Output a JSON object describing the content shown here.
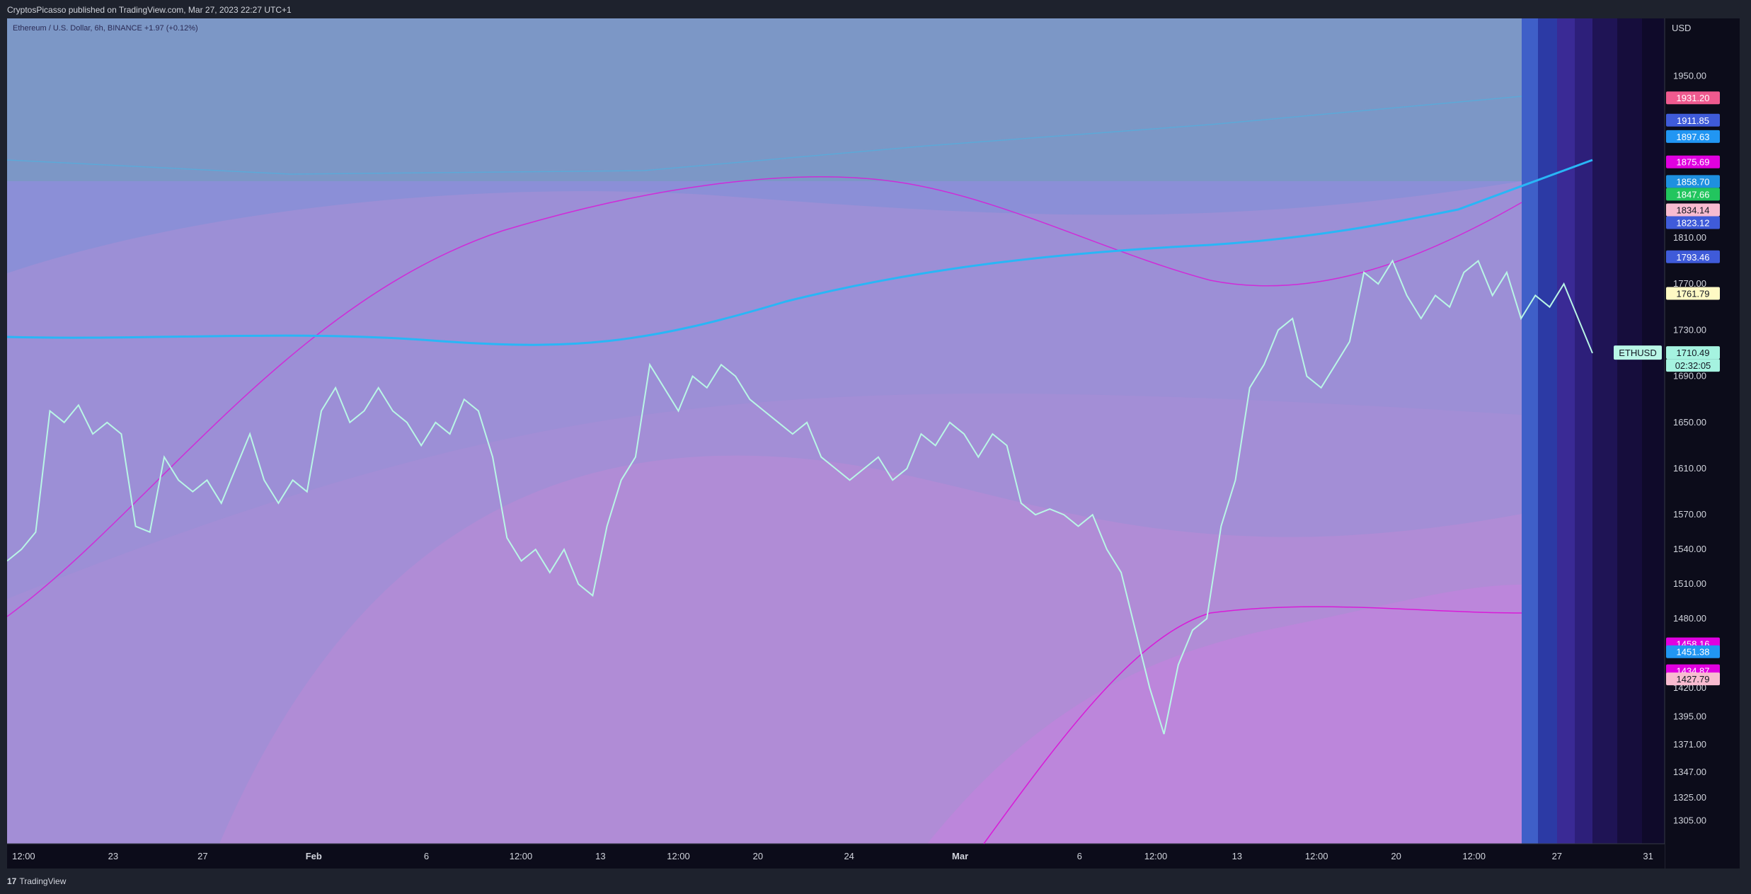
{
  "header": {
    "published": "CryptosPicasso published on TradingView.com, Mar 27, 2023 22:27 UTC+1"
  },
  "legend": {
    "symbol_line": "Ethereum / U.S. Dollar, 6h, BINANCE +1.97 (+0.12%)"
  },
  "footer": {
    "logo_mark": "17",
    "brand": "TradingView"
  },
  "chart_data": {
    "type": "line",
    "symbol": "ETHUSD",
    "currency": "USD",
    "y_range": [
      1285,
      2000
    ],
    "y_ticks": [
      1305.0,
      1325.0,
      1347.0,
      1371.0,
      1395.0,
      1420.0,
      1480.0,
      1510.0,
      1540.0,
      1570.0,
      1610.0,
      1650.0,
      1690.0,
      1730.0,
      1770.0,
      1810.0,
      1950.0
    ],
    "y_tick_labels": [
      "1305.00",
      "1325.00",
      "1347.00",
      "1371.00",
      "1395.00",
      "1420.00",
      "1480.00",
      "1510.00",
      "1540.00",
      "1570.00",
      "1610.00",
      "1650.00",
      "1690.00",
      "1730.00",
      "1770.00",
      "1810.00",
      "1950.00"
    ],
    "x_tick_labels": [
      "12:00",
      "23",
      "27",
      "Feb",
      "6",
      "12:00",
      "13",
      "12:00",
      "20",
      "24",
      "Mar",
      "6",
      "12:00",
      "13",
      "12:00",
      "20",
      "12:00",
      "27",
      "31"
    ],
    "x_tick_positions": [
      0.01,
      0.064,
      0.118,
      0.185,
      0.253,
      0.31,
      0.358,
      0.405,
      0.453,
      0.508,
      0.575,
      0.647,
      0.693,
      0.742,
      0.79,
      0.838,
      0.885,
      0.935,
      0.99
    ],
    "price_series": [
      1530,
      1540,
      1555,
      1660,
      1650,
      1665,
      1640,
      1650,
      1640,
      1560,
      1555,
      1620,
      1600,
      1590,
      1600,
      1580,
      1610,
      1640,
      1600,
      1580,
      1600,
      1590,
      1660,
      1680,
      1650,
      1660,
      1680,
      1660,
      1650,
      1630,
      1650,
      1640,
      1670,
      1660,
      1620,
      1550,
      1530,
      1540,
      1520,
      1540,
      1510,
      1500,
      1560,
      1600,
      1620,
      1700,
      1680,
      1660,
      1690,
      1680,
      1700,
      1690,
      1670,
      1660,
      1650,
      1640,
      1650,
      1620,
      1610,
      1600,
      1610,
      1620,
      1600,
      1610,
      1640,
      1630,
      1650,
      1640,
      1620,
      1640,
      1630,
      1580,
      1570,
      1575,
      1570,
      1560,
      1570,
      1540,
      1520,
      1470,
      1420,
      1380,
      1440,
      1470,
      1480,
      1560,
      1600,
      1680,
      1700,
      1730,
      1740,
      1690,
      1680,
      1700,
      1720,
      1780,
      1770,
      1790,
      1760,
      1740,
      1760,
      1750,
      1780,
      1790,
      1760,
      1780,
      1740,
      1760,
      1750,
      1770,
      1740,
      1710
    ],
    "markers": [
      {
        "label": "1931.20",
        "value": 1931.2,
        "color": "#ef5a8f"
      },
      {
        "label": "1911.85",
        "value": 1911.85,
        "color": "#3f5bd9"
      },
      {
        "label": "1897.63",
        "value": 1897.63,
        "color": "#2196f3"
      },
      {
        "label": "1875.69",
        "value": 1875.69,
        "color": "#e000e0"
      },
      {
        "label": "1858.70",
        "value": 1858.7,
        "color": "#1e90e0"
      },
      {
        "label": "1847.66",
        "value": 1847.66,
        "color": "#22c55e"
      },
      {
        "label": "1834.14",
        "value": 1834.14,
        "color": "#f8bbd0"
      },
      {
        "label": "1823.12",
        "value": 1823.12,
        "color": "#3f5bd9"
      },
      {
        "label": "1793.46",
        "value": 1793.46,
        "color": "#3f5bd9"
      },
      {
        "label": "1761.79",
        "value": 1761.79,
        "color": "#fff9c4"
      },
      {
        "label": "1710.49",
        "value": 1710.49,
        "color": "#a5f3e0"
      },
      {
        "label": "1458.16",
        "value": 1458.16,
        "color": "#e000e0"
      },
      {
        "label": "1451.38",
        "value": 1451.38,
        "color": "#2196f3"
      },
      {
        "label": "1434.87",
        "value": 1434.87,
        "color": "#e000e0"
      },
      {
        "label": "1427.79",
        "value": 1427.79,
        "color": "#f8bbd0"
      }
    ],
    "symbol_tag": "ETHUSD",
    "countdown": "02:32:05",
    "last_price": "1710.49"
  }
}
